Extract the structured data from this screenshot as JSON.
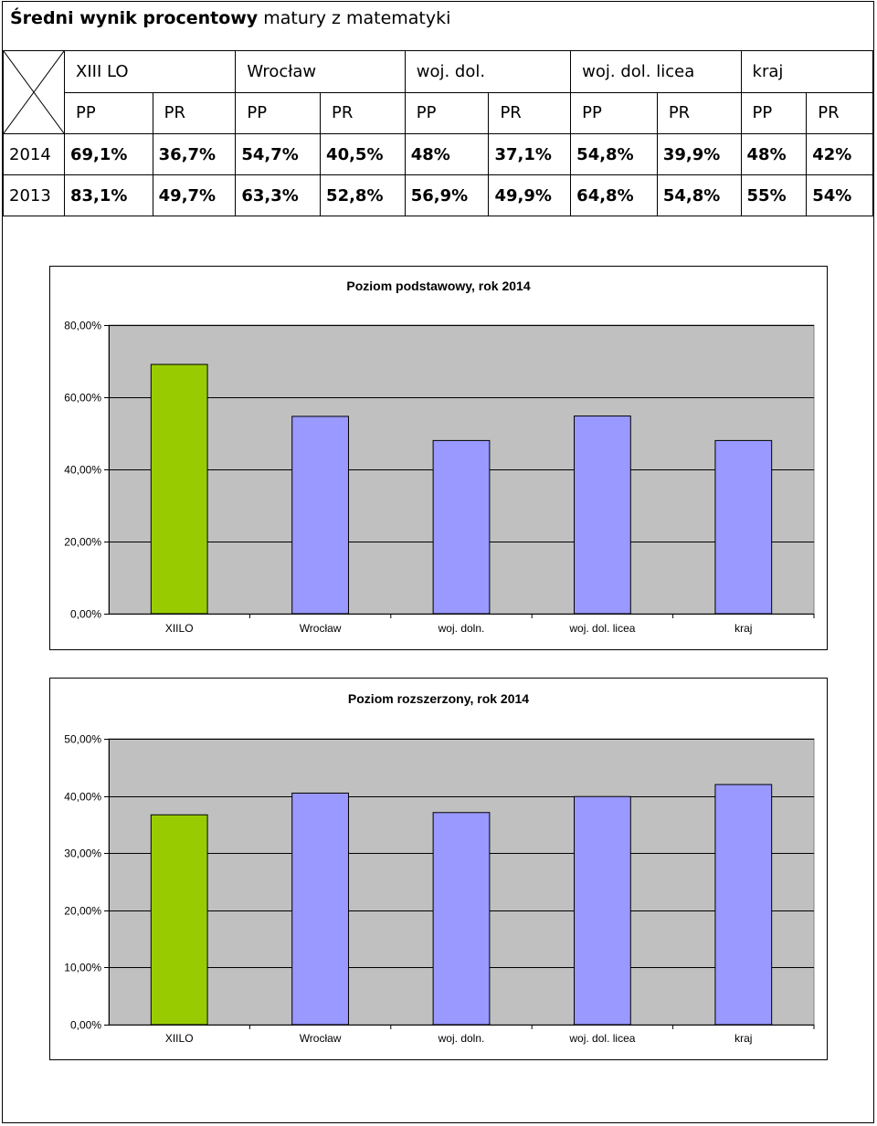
{
  "title": {
    "bold": "Średni wynik procentowy",
    "rest": " matury z matematyki"
  },
  "table": {
    "groups": [
      "XIII LO",
      "Wrocław",
      "woj. dol.",
      "woj. dol. licea",
      "kraj"
    ],
    "subheaders": [
      "PP",
      "PR",
      "PP",
      "PR",
      "PP",
      "PR",
      "PP",
      "PR",
      "PP",
      "PR"
    ],
    "rows": [
      {
        "year": "2014",
        "values": [
          "69,1%",
          "36,7%",
          "54,7%",
          "40,5%",
          "48%",
          "37,1%",
          "54,8%",
          "39,9%",
          "48%",
          "42%"
        ]
      },
      {
        "year": "2013",
        "values": [
          "83,1%",
          "49,7%",
          "63,3%",
          "52,8%",
          "56,9%",
          "49,9%",
          "64,8%",
          "54,8%",
          "55%",
          "54%"
        ]
      }
    ]
  },
  "colors": {
    "highlight": "#99cc00",
    "other": "#9999ff",
    "plot_bg": "#c0c0c0"
  },
  "chart_data": [
    {
      "type": "bar",
      "title": "Poziom podstawowy, rok 2014",
      "categories": [
        "XIILO",
        "Wrocław",
        "woj. doln.",
        "woj. dol. licea",
        "kraj"
      ],
      "values": [
        69.1,
        54.7,
        48,
        54.8,
        48
      ],
      "ylim": [
        0,
        80
      ],
      "yticks": [
        0,
        20,
        40,
        60,
        80
      ],
      "ytick_labels": [
        "0,00%",
        "20,00%",
        "40,00%",
        "60,00%",
        "80,00%"
      ],
      "grid": true,
      "legend": "none"
    },
    {
      "type": "bar",
      "title": "Poziom rozszerzony, rok 2014",
      "categories": [
        "XIILO",
        "Wrocław",
        "woj. doln.",
        "woj. dol. licea",
        "kraj"
      ],
      "values": [
        36.7,
        40.5,
        37.1,
        39.9,
        42
      ],
      "ylim": [
        0,
        50
      ],
      "yticks": [
        0,
        10,
        20,
        30,
        40,
        50
      ],
      "ytick_labels": [
        "0,00%",
        "10,00%",
        "20,00%",
        "30,00%",
        "40,00%",
        "50,00%"
      ],
      "grid": true,
      "legend": "none"
    }
  ]
}
